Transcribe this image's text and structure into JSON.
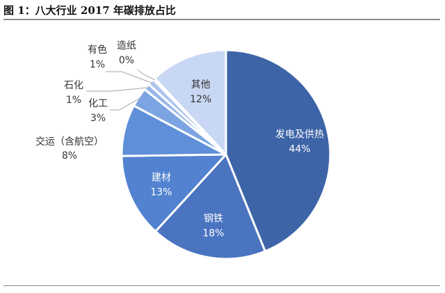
{
  "figure": {
    "title": "图 1：八大行业 2017 年碳排放占比"
  },
  "chart_data": {
    "type": "pie",
    "title": "",
    "slices": [
      {
        "label": "发电及供热",
        "value": 44,
        "value_label": "44%",
        "color": "#3d64a7",
        "label_pos": "inside",
        "label_color": "#ffffff"
      },
      {
        "label": "钢铁",
        "value": 18,
        "value_label": "18%",
        "color": "#4a74c0",
        "label_pos": "inside",
        "label_color": "#ffffff"
      },
      {
        "label": "建材",
        "value": 13,
        "value_label": "13%",
        "color": "#5282d0",
        "label_pos": "inside",
        "label_color": "#ffffff"
      },
      {
        "label": "交运（含航空）",
        "value": 8,
        "value_label": "8%",
        "color": "#5f8fd8",
        "label_pos": "outside",
        "label_color": "#333333"
      },
      {
        "label": "化工",
        "value": 3,
        "value_label": "3%",
        "color": "#7da4e2",
        "label_pos": "outside",
        "label_color": "#333333"
      },
      {
        "label": "石化",
        "value": 1,
        "value_label": "1%",
        "color": "#99b7e8",
        "label_pos": "outside",
        "label_color": "#333333"
      },
      {
        "label": "有色",
        "value": 1,
        "value_label": "1%",
        "color": "#adc5ee",
        "label_pos": "outside",
        "label_color": "#333333"
      },
      {
        "label": "造纸",
        "value": 0.3,
        "value_label": "0%",
        "color": "#c0d2f2",
        "label_pos": "outside",
        "label_color": "#333333"
      },
      {
        "label": "其他",
        "value": 12,
        "value_label": "12%",
        "color": "#c8d7f3",
        "label_pos": "inside",
        "label_color": "#333333"
      }
    ]
  }
}
